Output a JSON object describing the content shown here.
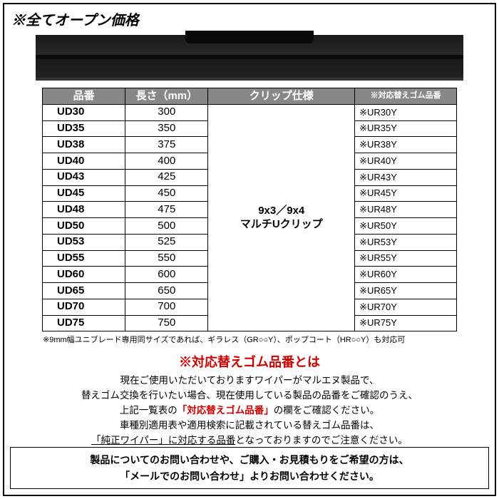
{
  "title": "※全てオープン価格",
  "table": {
    "headers": [
      "品番",
      "長さ（mm）",
      "クリップ仕様",
      "※対応替えゴム品番"
    ],
    "clip_spec": "9x3／9x4\nマルチUクリップ",
    "rows": [
      {
        "code": "UD30",
        "len": "300",
        "rubber": "※UR30Y"
      },
      {
        "code": "UD35",
        "len": "350",
        "rubber": "※UR35Y"
      },
      {
        "code": "UD38",
        "len": "375",
        "rubber": "※UR38Y"
      },
      {
        "code": "UD40",
        "len": "400",
        "rubber": "※UR40Y"
      },
      {
        "code": "UD43",
        "len": "425",
        "rubber": "※UR43Y"
      },
      {
        "code": "UD45",
        "len": "450",
        "rubber": "※UR45Y"
      },
      {
        "code": "UD48",
        "len": "475",
        "rubber": "※UR48Y"
      },
      {
        "code": "UD50",
        "len": "500",
        "rubber": "※UR50Y"
      },
      {
        "code": "UD53",
        "len": "525",
        "rubber": "※UR53Y"
      },
      {
        "code": "UD55",
        "len": "550",
        "rubber": "※UR55Y"
      },
      {
        "code": "UD60",
        "len": "600",
        "rubber": "※UR60Y"
      },
      {
        "code": "UD65",
        "len": "650",
        "rubber": "※UR65Y"
      },
      {
        "code": "UD70",
        "len": "700",
        "rubber": "※UR70Y"
      },
      {
        "code": "UD75",
        "len": "750",
        "rubber": "※UR75Y"
      }
    ],
    "footnote": "※9mm幅ユニブレード専用同サイズであれば、ギラレス（GR○○Y）、ポップコート（HR○○Y）も対応可"
  },
  "section": {
    "title": "※対応替えゴム品番とは",
    "line1": "現在ご使用いただいておりますワイパーがマルエヌ製品で、",
    "line2a": "替えゴム交換を行いたい場合、現在使用している製品の品番をご確認のうえ、",
    "line3a": "上記一覧表の",
    "line3b": "「対応替えゴム品番」",
    "line3c": "の欄をご確認ください。",
    "line4": "車種別適用表や適用検索に記載されている替えゴム品番は、",
    "line5a": "「純正ワイパー」に対応する品番",
    "line5b": "となっておりますのでご注意ください。"
  },
  "footer": {
    "line1": "製品についてのお問い合わせや、ご購入・お見積もりをご希望の方は、",
    "line2": "「メールでのお問い合わせ」よりお問い合わせください。"
  },
  "style": {
    "header_bg": "#888888",
    "red": "#d00000",
    "border": "#000000"
  }
}
